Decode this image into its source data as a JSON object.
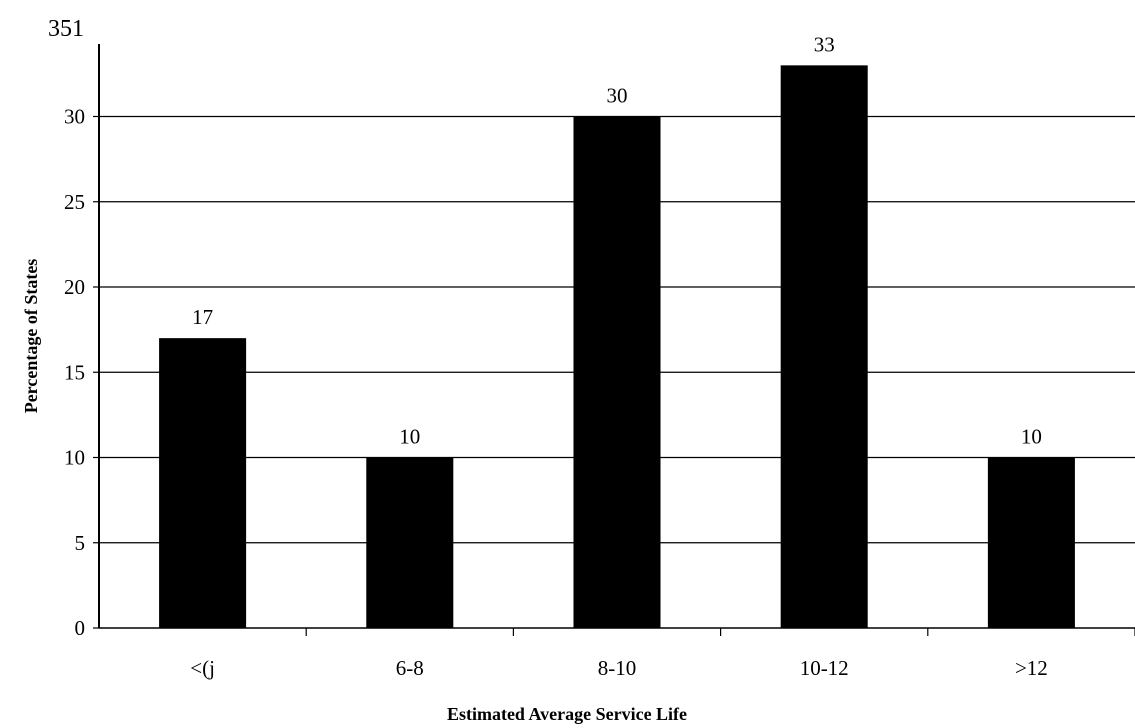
{
  "chart_data": {
    "type": "bar",
    "top_left_label": "351",
    "ylabel": "Percentage of States",
    "xlabel": "Estimated Average Service Life",
    "categories": [
      "<(j",
      "6-8",
      "8-10",
      "10-12",
      ">12"
    ],
    "values": [
      17,
      10,
      30,
      33,
      10
    ],
    "data_labels": [
      "17",
      "10",
      "30",
      "33",
      "10"
    ],
    "yticks": [
      "0",
      "5",
      "10",
      "15",
      "20",
      "25",
      "30"
    ],
    "ylim": [
      0,
      35
    ],
    "grid": true,
    "legend": "none",
    "bar_color": "#000000"
  }
}
